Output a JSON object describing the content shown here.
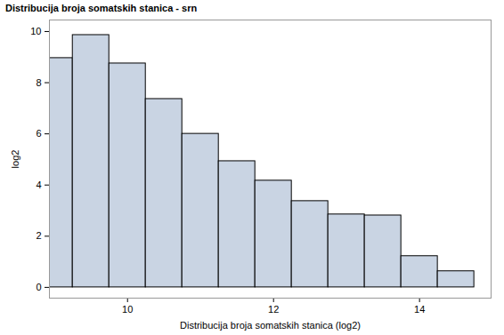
{
  "chart_data": {
    "type": "histogram",
    "title": "Distribucija broja somatskih stanica - srn",
    "x_label": "Distribucija broja somatskih stanica (log2)",
    "y_label": "log2",
    "bins": [
      8.75,
      9.25,
      9.75,
      10.25,
      10.75,
      11.25,
      11.75,
      12.25,
      12.75,
      13.25,
      13.75,
      14.25,
      14.75
    ],
    "values": [
      8.96,
      9.86,
      8.75,
      7.36,
      6.0,
      4.93,
      4.17,
      3.37,
      2.85,
      2.81,
      1.22,
      0.63
    ],
    "color": "#c9d4e3",
    "xlim": [
      8.93,
      14.98
    ],
    "xticks": [
      10,
      12,
      14
    ],
    "ylim": [
      -0.42,
      10.45
    ],
    "yticks": [
      0,
      2,
      4,
      6,
      8,
      10
    ],
    "grid": false
  }
}
